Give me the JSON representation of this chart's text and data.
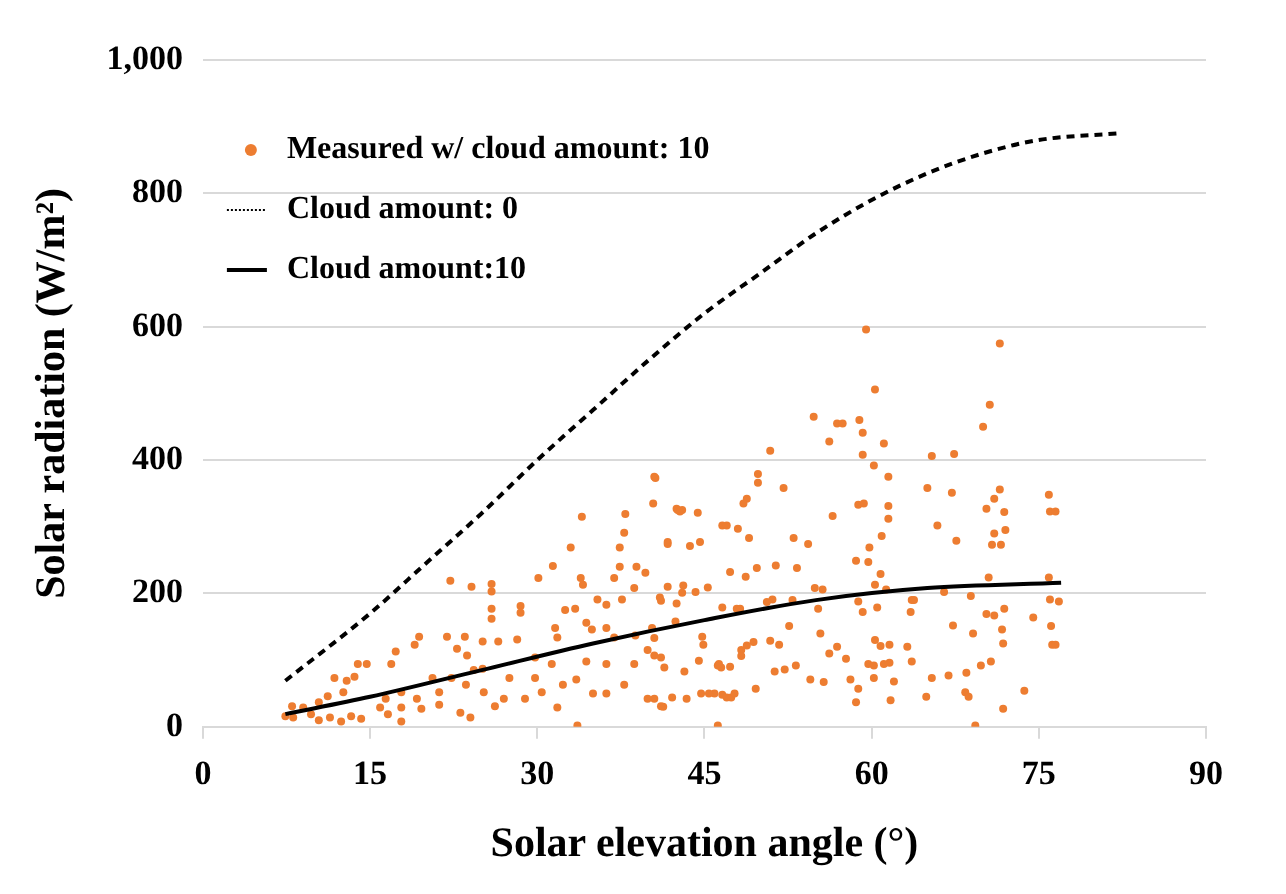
{
  "chart_data": {
    "type": "scatter",
    "xlabel": "Solar elevation angle (°)",
    "ylabel": "Solar radiation (W/m²)",
    "xlim": [
      0,
      90
    ],
    "xticks": [
      0,
      15,
      30,
      45,
      60,
      75,
      90
    ],
    "ylim": [
      0,
      1000
    ],
    "yticks": [
      0,
      200,
      400,
      600,
      800,
      {
        "value": 1000,
        "label": "1,000"
      }
    ],
    "grid": "y",
    "legend": "top left",
    "series": [
      {
        "name": "Measured w/ cloud amount: 10",
        "color": "#ed7d31",
        "marker": "circle",
        "x": [
          59.5,
          71.5,
          60.3,
          70.6,
          70,
          54.8,
          56.9,
          57.4,
          58.9,
          59.2,
          56.2,
          50.9,
          61.1,
          59.2,
          65.4,
          67.4,
          60.2,
          49.8,
          49.8,
          65,
          67.2,
          52.1,
          61.5,
          71.5,
          75.9,
          76,
          76.5,
          71,
          70.3,
          71.9,
          56.5,
          58.8,
          59.3,
          61.5,
          61.5,
          65.9,
          48.8,
          48.5,
          42.6,
          43,
          44.4,
          40.5,
          46.6,
          48,
          49,
          41.7,
          54.3,
          53,
          59.8,
          67.6,
          72,
          71,
          70.8,
          71.6,
          60.9,
          58.6,
          59.7,
          60.8,
          49.7,
          48.7,
          47.3,
          51.4,
          53.3,
          54.9,
          55.6,
          60.3,
          61.3,
          70.5,
          75.9,
          66.5,
          68.9,
          71.9,
          76,
          76.8,
          63.6,
          63.8,
          45.3,
          44.2,
          43,
          41,
          46.6,
          47.9,
          48.2,
          51.1,
          50.6,
          52.9,
          55.2,
          58.8,
          59.2,
          60.5,
          63.5,
          67.3,
          69.1,
          70.3,
          71,
          71.7,
          71.8,
          74.5,
          76.1,
          76.2,
          76.5,
          52.6,
          50.9,
          51.7,
          49.4,
          48.8,
          48.3,
          48.3,
          55.4,
          56.9,
          57.7,
          56.2,
          60.3,
          60.8,
          61.6,
          61.6,
          61.1,
          63.2,
          63.6,
          59.7,
          60.2,
          53.2,
          52.2,
          46.2,
          46.5,
          43.2,
          41.4,
          40.5,
          40.5,
          44.9,
          44.5,
          54.5,
          55.7,
          58.1,
          58.8,
          60.2,
          62,
          65.4,
          66.9,
          68.5,
          69.8,
          70.7,
          73.7,
          58.6,
          61.7,
          64.9,
          68.4,
          68.7,
          71.8,
          46.2,
          69.3,
          43.4,
          44.7,
          45.9,
          47,
          47.4,
          41.3,
          40.5,
          49.6,
          51.3,
          40.6,
          34,
          40.4,
          42.5,
          42.8,
          37.9,
          37.8,
          37.4,
          33,
          31.4,
          30.1,
          24.1,
          25.9,
          25.9,
          22.2,
          33.9,
          34.1,
          36.9,
          37.4,
          38.9,
          39.7,
          41.7,
          43.7,
          44.6,
          47,
          38.7,
          41.7,
          41.1,
          42.5,
          43.1,
          35.4,
          36.2,
          37.6,
          28.5,
          28.5,
          25.9,
          25.9,
          32.5,
          33.4,
          34.4,
          34.9,
          31.6,
          31.8,
          36.2,
          36.9,
          38.8,
          40.3,
          42.4,
          44.8,
          19.4,
          19,
          21.9,
          23.5,
          25.1,
          26.5,
          28.2,
          22.8,
          23.7,
          24.3,
          25.1,
          17.3,
          16.9,
          13.9,
          14.7,
          11.8,
          12.9,
          13.6,
          12.6,
          11.2,
          10.4,
          8,
          9,
          7.4,
          8.1,
          9.7,
          11.4,
          13.3,
          14.2,
          10.4,
          12.4,
          15.9,
          16.4,
          17.8,
          19.6,
          21.2,
          17.8,
          19.2,
          21.2,
          20.6,
          22.3,
          27,
          28.9,
          30.4,
          27.5,
          29.8,
          32.3,
          33.5,
          35,
          31.8,
          33.6,
          36.2,
          37.8,
          39.9,
          41.1,
          42.1,
          45.4,
          46.6,
          47.7,
          38.7,
          36.2,
          34.4,
          39.9,
          41.1,
          46.3,
          47.3,
          29.8,
          31.3,
          23.6,
          25.2,
          26.2,
          23.1,
          24,
          16.6,
          17.8
        ],
        "values": [
          596,
          575,
          506,
          483,
          450,
          465,
          455,
          455,
          460,
          441,
          428,
          414,
          425,
          408,
          406,
          409,
          392,
          379,
          366,
          358,
          351,
          358,
          375,
          356,
          348,
          323,
          323,
          342,
          327,
          322,
          316,
          333,
          335,
          331,
          312,
          302,
          342,
          335,
          325,
          325,
          321,
          375,
          302,
          297,
          283,
          274,
          274,
          283,
          269,
          279,
          295,
          290,
          273,
          273,
          286,
          249,
          247,
          229,
          238,
          225,
          232,
          242,
          238,
          208,
          206,
          213,
          206,
          224,
          224,
          202,
          196,
          177,
          191,
          188,
          190,
          190,
          209,
          202,
          201,
          194,
          179,
          177,
          177,
          191,
          187,
          190,
          177,
          188,
          172,
          179,
          172,
          152,
          140,
          169,
          167,
          146,
          125,
          164,
          151,
          123,
          123,
          151,
          129,
          123,
          127,
          122,
          115,
          106,
          140,
          120,
          102,
          110,
          130,
          121,
          123,
          96,
          94,
          120,
          98,
          94,
          92,
          92,
          86,
          92,
          89,
          83,
          89,
          133,
          107,
          123,
          99,
          71,
          67,
          71,
          57,
          73,
          68,
          73,
          77,
          81,
          92,
          98,
          54,
          37,
          40,
          45,
          52,
          45,
          27,
          2,
          2,
          42,
          50,
          50,
          44,
          44,
          30,
          42,
          57,
          83,
          373,
          315,
          335,
          327,
          323,
          319,
          291,
          269,
          269,
          241,
          223,
          210,
          214,
          203,
          219,
          223,
          213,
          223,
          240,
          240,
          231,
          277,
          271,
          277,
          302,
          208,
          210,
          189,
          185,
          212,
          191,
          183,
          191,
          181,
          171,
          177,
          162,
          175,
          177,
          156,
          146,
          148,
          134,
          148,
          134,
          137,
          148,
          158,
          135,
          135,
          123,
          135,
          135,
          128,
          128,
          131,
          117,
          107,
          85,
          87,
          113,
          94,
          94,
          94,
          73,
          69,
          75,
          52,
          46,
          37,
          31,
          29,
          16,
          14,
          19,
          14,
          16,
          12,
          10,
          8,
          29,
          42,
          29,
          27,
          33,
          52,
          42,
          52,
          73,
          73,
          42,
          42,
          52,
          73,
          73,
          63,
          71,
          50,
          29,
          2,
          50,
          63,
          42,
          31,
          44,
          50,
          48,
          50,
          94,
          94,
          98,
          115,
          104,
          94,
          90,
          104,
          94,
          63,
          52,
          31,
          21,
          14,
          19,
          8
        ]
      },
      {
        "name": "Cloud amount: 0",
        "type": "line",
        "color": "#000000",
        "line_style": "dashed",
        "marker": "none",
        "x": [
          7.4,
          15,
          20,
          25,
          30,
          35,
          40,
          45,
          50,
          55,
          60,
          65,
          70,
          75,
          82
        ],
        "values": [
          69,
          170,
          245,
          320,
          400,
          475,
          550,
          620,
          680,
          740,
          790,
          830,
          860,
          880,
          890
        ]
      },
      {
        "name": "Cloud amount:10",
        "type": "line",
        "color": "#000000",
        "line_style": "solid",
        "marker": "none",
        "x": [
          7.4,
          15,
          25,
          35,
          45,
          55,
          65,
          77
        ],
        "values": [
          19,
          45,
          85,
          125,
          160,
          190,
          208,
          216
        ]
      }
    ]
  }
}
